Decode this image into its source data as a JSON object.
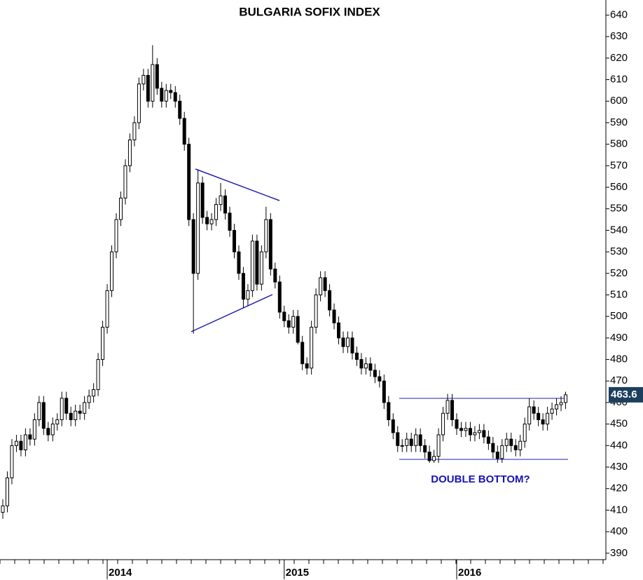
{
  "chart_data": {
    "type": "candlestick",
    "title": "BULGARIA SOFIX INDEX",
    "annotation": "DOUBLE BOTTOM?",
    "categories": [
      null,
      null,
      null,
      null,
      null,
      null,
      null,
      null,
      null,
      null,
      null,
      null,
      null,
      null,
      null,
      null,
      null,
      null,
      null,
      null,
      null,
      null,
      null,
      "2014",
      null,
      null,
      null,
      null,
      null,
      null,
      null,
      null,
      null,
      null,
      null,
      null,
      null,
      null,
      null,
      null,
      null,
      null,
      null,
      null,
      null,
      null,
      null,
      null,
      null,
      null,
      null,
      null,
      null,
      null,
      null,
      null,
      null,
      null,
      null,
      null,
      null,
      null,
      "2015",
      null,
      null,
      null,
      null,
      null,
      null,
      null,
      null,
      null,
      null,
      null,
      null,
      null,
      null,
      null,
      null,
      null,
      null,
      null,
      null,
      null,
      null,
      null,
      null,
      null,
      null,
      null,
      null,
      null,
      null,
      null,
      null,
      null,
      null,
      null,
      null,
      null,
      "2016",
      null,
      null,
      null,
      null,
      null,
      null,
      null,
      null,
      null,
      null,
      null,
      null,
      null,
      null,
      null,
      null,
      null,
      null,
      null,
      null,
      null,
      null,
      null,
      null
    ],
    "open": [
      409,
      412,
      425,
      440,
      442,
      438,
      445,
      443,
      452,
      460,
      448,
      445,
      450,
      452,
      462,
      455,
      452,
      456,
      455,
      460,
      463,
      466,
      480,
      495,
      512,
      530,
      545,
      555,
      570,
      582,
      590,
      608,
      612,
      600,
      617,
      606,
      600,
      605,
      604,
      600,
      592,
      580,
      545,
      520,
      562,
      546,
      543,
      545,
      552,
      556,
      548,
      540,
      530,
      520,
      508,
      512,
      535,
      515,
      530,
      545,
      522,
      516,
      502,
      498,
      495,
      500,
      488,
      478,
      476,
      495,
      510,
      518,
      512,
      503,
      497,
      490,
      486,
      490,
      483,
      480,
      476,
      478,
      475,
      472,
      470,
      460,
      452,
      446,
      440,
      440,
      443,
      440,
      445,
      440,
      437,
      433,
      435,
      445,
      455,
      461,
      452,
      448,
      447,
      448,
      445,
      446,
      447,
      444,
      441,
      437,
      434,
      440,
      443,
      440,
      438,
      442,
      450,
      458,
      455,
      452,
      450,
      455,
      457,
      459,
      460
    ],
    "high": [
      415,
      428,
      443,
      445,
      445,
      448,
      448,
      455,
      463,
      463,
      451,
      453,
      455,
      465,
      465,
      458,
      459,
      459,
      463,
      466,
      469,
      483,
      498,
      515,
      533,
      548,
      558,
      573,
      585,
      593,
      611,
      615,
      615,
      626,
      620,
      609,
      608,
      608,
      607,
      603,
      595,
      583,
      548,
      568,
      565,
      549,
      548,
      555,
      562,
      559,
      551,
      543,
      533,
      523,
      515,
      538,
      538,
      533,
      551,
      548,
      525,
      519,
      505,
      501,
      503,
      503,
      491,
      481,
      498,
      513,
      521,
      521,
      515,
      506,
      500,
      493,
      493,
      493,
      486,
      483,
      481,
      481,
      478,
      475,
      473,
      463,
      455,
      449,
      443,
      446,
      446,
      448,
      448,
      443,
      440,
      438,
      448,
      458,
      464,
      464,
      455,
      451,
      451,
      451,
      449,
      450,
      450,
      447,
      444,
      440,
      443,
      446,
      446,
      443,
      445,
      453,
      462,
      461,
      458,
      455,
      458,
      460,
      462,
      463,
      465
    ],
    "low": [
      406,
      409,
      422,
      437,
      435,
      435,
      440,
      440,
      449,
      445,
      442,
      442,
      447,
      449,
      452,
      449,
      449,
      452,
      452,
      457,
      460,
      463,
      477,
      492,
      509,
      527,
      542,
      552,
      567,
      579,
      587,
      605,
      597,
      597,
      603,
      597,
      597,
      601,
      597,
      589,
      577,
      542,
      492,
      517,
      543,
      540,
      540,
      542,
      549,
      545,
      537,
      527,
      517,
      504,
      505,
      509,
      512,
      512,
      527,
      519,
      513,
      499,
      495,
      492,
      492,
      487,
      475,
      473,
      473,
      492,
      507,
      509,
      500,
      494,
      487,
      483,
      483,
      480,
      477,
      473,
      473,
      472,
      469,
      467,
      457,
      449,
      443,
      437,
      437,
      437,
      437,
      437,
      437,
      434,
      432,
      432,
      432,
      442,
      452,
      449,
      445,
      444,
      444,
      442,
      442,
      443,
      441,
      438,
      434,
      432,
      432,
      437,
      437,
      435,
      435,
      439,
      447,
      452,
      449,
      447,
      447,
      452,
      454,
      456,
      457
    ],
    "close": [
      412,
      425,
      440,
      442,
      438,
      445,
      443,
      452,
      460,
      448,
      445,
      450,
      452,
      462,
      455,
      452,
      456,
      455,
      460,
      463,
      466,
      480,
      495,
      512,
      530,
      545,
      555,
      570,
      582,
      590,
      608,
      612,
      600,
      617,
      606,
      600,
      605,
      604,
      600,
      592,
      580,
      545,
      520,
      562,
      546,
      543,
      545,
      552,
      556,
      548,
      540,
      530,
      520,
      508,
      512,
      535,
      515,
      530,
      545,
      522,
      516,
      502,
      498,
      495,
      500,
      488,
      478,
      476,
      495,
      510,
      518,
      512,
      503,
      497,
      490,
      486,
      490,
      483,
      480,
      476,
      478,
      475,
      472,
      470,
      460,
      452,
      446,
      440,
      440,
      443,
      440,
      445,
      440,
      437,
      433,
      435,
      445,
      455,
      461,
      452,
      448,
      447,
      448,
      445,
      446,
      447,
      444,
      441,
      437,
      434,
      440,
      443,
      440,
      438,
      442,
      450,
      458,
      455,
      452,
      450,
      455,
      457,
      459,
      460,
      463.6
    ],
    "up_color": "#ffffff",
    "down_color": "#000000",
    "ylim": [
      387,
      647
    ],
    "yticks": [
      390,
      400,
      410,
      420,
      430,
      440,
      450,
      460,
      470,
      480,
      490,
      500,
      510,
      520,
      530,
      540,
      550,
      560,
      570,
      580,
      590,
      600,
      610,
      620,
      630,
      640
    ]
  }
}
